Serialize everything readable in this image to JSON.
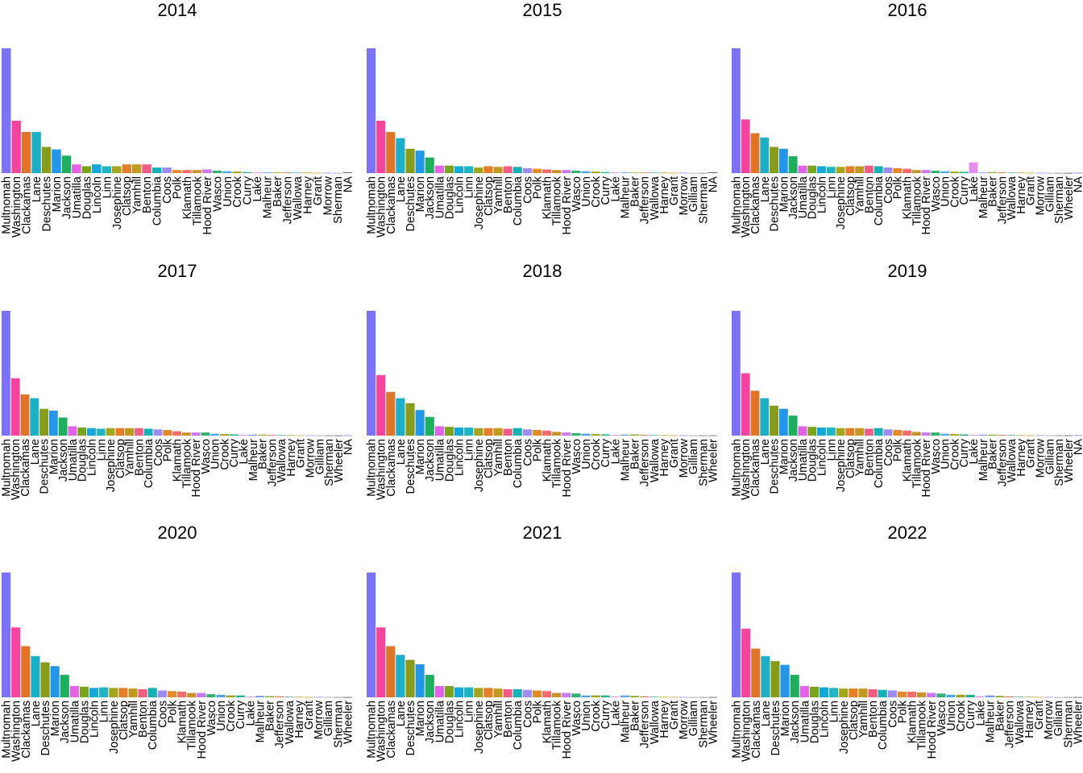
{
  "chart_data": {
    "type": "bar",
    "layout": "facet grid of bar charts by year (3 columns x 3 rows)",
    "axes": "no axes, no gridlines, no legend",
    "palette": [
      "#7B72F7",
      "#F5449E",
      "#E0752A",
      "#1BAFC8",
      "#889C1A",
      "#2496EA",
      "#1DAE5E",
      "#E362E7",
      "#7BA41C",
      "#12A8D8",
      "#1FB4C4",
      "#A3A61D",
      "#E47E2A",
      "#C29A1E",
      "#F25E83",
      "#14B2B6",
      "#9E8CF5",
      "#E58A28",
      "#F66C6C",
      "#C9922A",
      "#CC78F4",
      "#2FB36E",
      "#4FA6F0",
      "#A79E18",
      "#1DB48C",
      "#E78DF2",
      "#6E9FF1",
      "#8FB22A",
      "#E17A5A",
      "#4BB0B8",
      "#B9A02A",
      "#D4A430",
      "#8F8FEF",
      "#9A9A9A",
      "#777777",
      "#555555"
    ],
    "panels": [
      {
        "title": "2014",
        "categories": [
          "Multnomah",
          "Washington",
          "Clackamas",
          "Lane",
          "Deschutes",
          "Marion",
          "Jackson",
          "Umatilla",
          "Douglas",
          "Lincoln",
          "Linn",
          "Josephine",
          "Clatsop",
          "Yamhill",
          "Benton",
          "Columbia",
          "Coos",
          "Polk",
          "Klamath",
          "Tillamook",
          "Hood River",
          "Wasco",
          "Union",
          "Crook",
          "Curry",
          "Lake",
          "Malheur",
          "Baker",
          "Jefferson",
          "Wallowa",
          "Harney",
          "Grant",
          "Morrow",
          "Sherman",
          "NA"
        ],
        "values": [
          1000,
          420,
          330,
          330,
          210,
          190,
          140,
          70,
          55,
          70,
          55,
          55,
          70,
          70,
          70,
          45,
          45,
          25,
          25,
          25,
          30,
          20,
          15,
          12,
          8,
          6,
          6,
          6,
          6,
          5,
          5,
          3,
          3,
          2,
          8
        ]
      },
      {
        "title": "2015",
        "categories": [
          "Multnomah",
          "Washington",
          "Clackamas",
          "Lane",
          "Deschutes",
          "Marion",
          "Jackson",
          "Umatilla",
          "Douglas",
          "Lincoln",
          "Linn",
          "Josephine",
          "Clatsop",
          "Yamhill",
          "Benton",
          "Columbia",
          "Coos",
          "Polk",
          "Klamath",
          "Tillamook",
          "Hood River",
          "Wasco",
          "Union",
          "Crook",
          "Curry",
          "Lake",
          "Malheur",
          "Baker",
          "Jefferson",
          "Wallowa",
          "Harney",
          "Grant",
          "Morrow",
          "Gilliam",
          "Sherman",
          "NA"
        ],
        "values": [
          1000,
          420,
          330,
          280,
          195,
          180,
          125,
          60,
          60,
          55,
          55,
          45,
          55,
          50,
          55,
          50,
          40,
          35,
          30,
          25,
          25,
          20,
          15,
          12,
          8,
          6,
          6,
          5,
          5,
          5,
          4,
          3,
          3,
          2,
          2,
          6
        ]
      },
      {
        "title": "2016",
        "categories": [
          "Multnomah",
          "Washington",
          "Clackamas",
          "Lane",
          "Deschutes",
          "Marion",
          "Jackson",
          "Umatilla",
          "Douglas",
          "Lincoln",
          "Linn",
          "Josephine",
          "Clatsop",
          "Yamhill",
          "Benton",
          "Columbia",
          "Coos",
          "Polk",
          "Klamath",
          "Tillamook",
          "Hood River",
          "Wasco",
          "Union",
          "Crook",
          "Curry",
          "Lake",
          "Malheur",
          "Baker",
          "Jefferson",
          "Wallowa",
          "Harney",
          "Grant",
          "Morrow",
          "Gilliam",
          "Sherman",
          "Wheeler",
          "NA"
        ],
        "values": [
          1000,
          430,
          320,
          285,
          210,
          195,
          135,
          60,
          60,
          55,
          50,
          50,
          55,
          55,
          60,
          55,
          45,
          40,
          35,
          25,
          25,
          20,
          15,
          12,
          10,
          85,
          5,
          8,
          6,
          5,
          5,
          3,
          3,
          2,
          2,
          2,
          3
        ]
      },
      {
        "title": "2017",
        "categories": [
          "Multnomah",
          "Washington",
          "Clackamas",
          "Lane",
          "Deschutes",
          "Marion",
          "Jackson",
          "Umatilla",
          "Douglas",
          "Lincoln",
          "Linn",
          "Josephine",
          "Clatsop",
          "Yamhill",
          "Benton",
          "Columbia",
          "Coos",
          "Polk",
          "Klamath",
          "Tillamook",
          "Hood River",
          "Wasco",
          "Union",
          "Crook",
          "Curry",
          "Lake",
          "Malheur",
          "Baker",
          "Jefferson",
          "Wallowa",
          "Harney",
          "Grant",
          "Morrow",
          "Gilliam",
          "Sherman",
          "Wheeler",
          "NA"
        ],
        "values": [
          1000,
          460,
          330,
          300,
          215,
          200,
          145,
          75,
          65,
          60,
          55,
          60,
          60,
          60,
          60,
          55,
          50,
          45,
          35,
          25,
          25,
          25,
          15,
          12,
          10,
          6,
          8,
          8,
          6,
          5,
          4,
          3,
          3,
          2,
          2,
          2,
          3
        ]
      },
      {
        "title": "2018",
        "categories": [
          "Multnomah",
          "Washington",
          "Clackamas",
          "Lane",
          "Deschutes",
          "Marion",
          "Jackson",
          "Umatilla",
          "Douglas",
          "Lincoln",
          "Linn",
          "Josephine",
          "Clatsop",
          "Yamhill",
          "Benton",
          "Columbia",
          "Coos",
          "Polk",
          "Klamath",
          "Tillamook",
          "Hood River",
          "Wasco",
          "Union",
          "Crook",
          "Curry",
          "Lake",
          "Malheur",
          "Baker",
          "Jefferson",
          "Wallowa",
          "Harney",
          "Grant",
          "Morrow",
          "Gilliam",
          "Sherman",
          "Wheeler"
        ],
        "values": [
          1000,
          485,
          350,
          300,
          260,
          205,
          150,
          75,
          70,
          65,
          65,
          60,
          60,
          60,
          55,
          60,
          50,
          45,
          40,
          30,
          25,
          20,
          15,
          12,
          10,
          6,
          8,
          10,
          6,
          5,
          4,
          3,
          3,
          2,
          2,
          2
        ]
      },
      {
        "title": "2019",
        "categories": [
          "Multnomah",
          "Washington",
          "Clackamas",
          "Lane",
          "Deschutes",
          "Marion",
          "Jackson",
          "Umatilla",
          "Douglas",
          "Lincoln",
          "Linn",
          "Josephine",
          "Clatsop",
          "Yamhill",
          "Benton",
          "Columbia",
          "Coos",
          "Polk",
          "Klamath",
          "Tillamook",
          "Hood River",
          "Wasco",
          "Union",
          "Crook",
          "Curry",
          "Lake",
          "Malheur",
          "Baker",
          "Jefferson",
          "Wallowa",
          "Harney",
          "Grant",
          "Morrow",
          "Gilliam",
          "Sherman",
          "Wheeler",
          "NA"
        ],
        "values": [
          1000,
          500,
          360,
          300,
          240,
          215,
          160,
          75,
          70,
          65,
          65,
          60,
          60,
          60,
          55,
          60,
          50,
          45,
          40,
          30,
          25,
          25,
          15,
          12,
          10,
          6,
          8,
          8,
          6,
          5,
          4,
          3,
          3,
          2,
          2,
          2,
          3
        ]
      },
      {
        "title": "2020",
        "categories": [
          "Multnomah",
          "Washington",
          "Clackamas",
          "Lane",
          "Deschutes",
          "Marion",
          "Jackson",
          "Umatilla",
          "Douglas",
          "Lincoln",
          "Linn",
          "Josephine",
          "Clatsop",
          "Yamhill",
          "Benton",
          "Columbia",
          "Coos",
          "Polk",
          "Klamath",
          "Tillamook",
          "Hood River",
          "Wasco",
          "Union",
          "Crook",
          "Curry",
          "Lake",
          "Malheur",
          "Baker",
          "Jefferson",
          "Wallowa",
          "Harney",
          "Grant",
          "Morrow",
          "Gilliam",
          "Sherman",
          "Wheeler"
        ],
        "values": [
          1000,
          560,
          410,
          330,
          280,
          250,
          180,
          90,
          85,
          75,
          80,
          75,
          75,
          70,
          65,
          75,
          55,
          50,
          45,
          35,
          35,
          25,
          20,
          15,
          15,
          6,
          12,
          10,
          8,
          5,
          4,
          3,
          3,
          2,
          2,
          2
        ]
      },
      {
        "title": "2021",
        "categories": [
          "Multnomah",
          "Washington",
          "Clackamas",
          "Lane",
          "Deschutes",
          "Marion",
          "Jackson",
          "Umatilla",
          "Douglas",
          "Lincoln",
          "Linn",
          "Josephine",
          "Clatsop",
          "Yamhill",
          "Benton",
          "Columbia",
          "Coos",
          "Polk",
          "Klamath",
          "Tillamook",
          "Hood River",
          "Wasco",
          "Union",
          "Crook",
          "Curry",
          "Lake",
          "Malheur",
          "Baker",
          "Jefferson",
          "Wallowa",
          "Harney",
          "Grant",
          "Morrow",
          "Gilliam",
          "Sherman",
          "Wheeler"
        ],
        "values": [
          1000,
          560,
          410,
          340,
          300,
          265,
          180,
          90,
          90,
          80,
          80,
          75,
          75,
          70,
          65,
          65,
          60,
          55,
          50,
          35,
          35,
          30,
          15,
          15,
          15,
          6,
          15,
          12,
          8,
          5,
          4,
          3,
          3,
          2,
          2,
          2
        ]
      },
      {
        "title": "2022",
        "categories": [
          "Multnomah",
          "Washington",
          "Clackamas",
          "Lane",
          "Deschutes",
          "Marion",
          "Jackson",
          "Umatilla",
          "Douglas",
          "Lincoln",
          "Linn",
          "Josephine",
          "Clatsop",
          "Yamhill",
          "Benton",
          "Columbia",
          "Coos",
          "Polk",
          "Klamath",
          "Tillamook",
          "Hood River",
          "Wasco",
          "Union",
          "Crook",
          "Curry",
          "Lake",
          "Malheur",
          "Baker",
          "Jefferson",
          "Wallowa",
          "Harney",
          "Grant",
          "Morrow",
          "Gilliam",
          "Sherman",
          "Wheeler"
        ],
        "values": [
          1000,
          550,
          390,
          330,
          290,
          260,
          180,
          90,
          85,
          80,
          75,
          70,
          70,
          70,
          65,
          60,
          55,
          45,
          45,
          40,
          35,
          30,
          20,
          20,
          20,
          8,
          15,
          12,
          8,
          5,
          4,
          3,
          3,
          2,
          2,
          2
        ]
      }
    ]
  }
}
